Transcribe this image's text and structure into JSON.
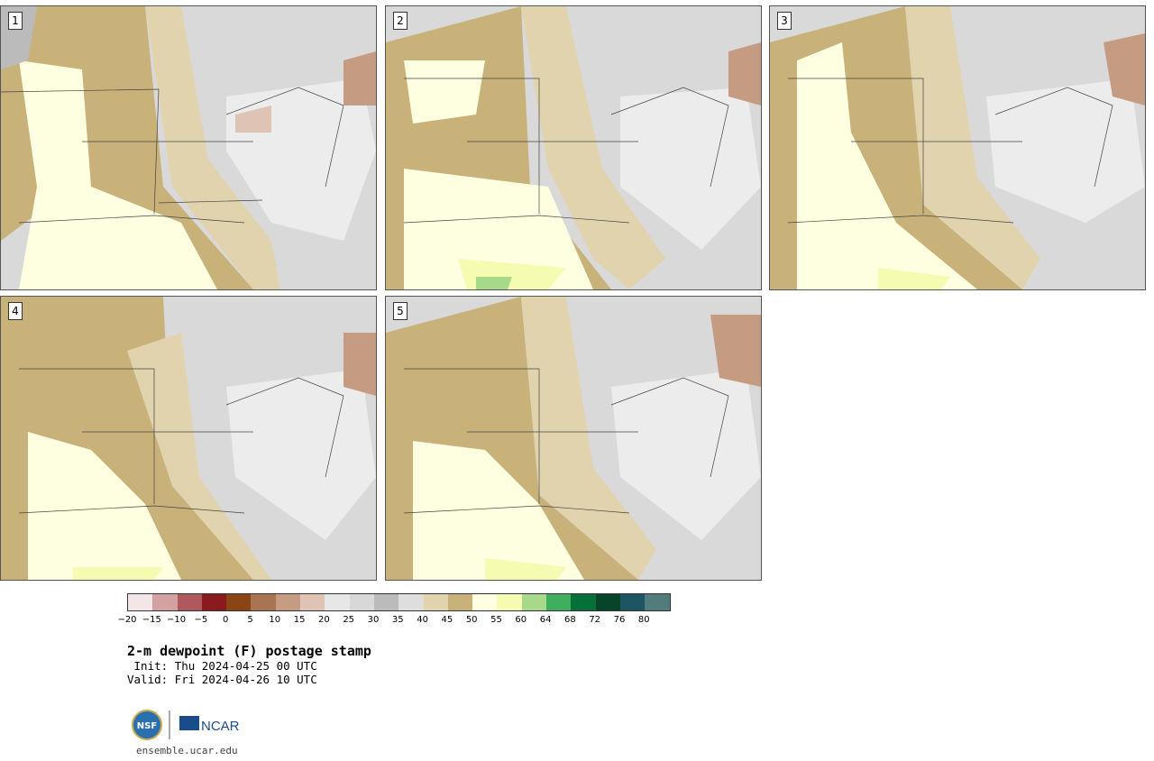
{
  "panels": [
    {
      "label": "1"
    },
    {
      "label": "2"
    },
    {
      "label": "3"
    },
    {
      "label": "4"
    },
    {
      "label": "5"
    }
  ],
  "colorbar": {
    "colors": [
      "#f3e6e6",
      "#d4a1a3",
      "#b0585d",
      "#8b1a1f",
      "#8b4513",
      "#a97452",
      "#c59b82",
      "#dfc3b4",
      "#e7e7e7",
      "#d8d8d8",
      "#bbbbbb",
      "#dedede",
      "#e0d3ad",
      "#c8b27a",
      "#fefee1",
      "#f5fbb0",
      "#a8d88a",
      "#3daf5e",
      "#057139",
      "#07442a",
      "#1e5563",
      "#527c7c"
    ],
    "ticks": [
      "−20",
      "−15",
      "−10",
      "−5",
      "0",
      "5",
      "10",
      "15",
      "20",
      "25",
      "30",
      "35",
      "40",
      "45",
      "50",
      "55",
      "60",
      "64",
      "68",
      "72",
      "76",
      "80"
    ]
  },
  "title": "2-m dewpoint (F) postage stamp",
  "init": " Init: Thu 2024-04-25 00 UTC",
  "valid": "Valid: Fri 2024-04-26 10 UTC",
  "logos": {
    "nsf": "NSF",
    "ncar": "NCAR"
  },
  "site": "ensemble.ucar.edu"
}
